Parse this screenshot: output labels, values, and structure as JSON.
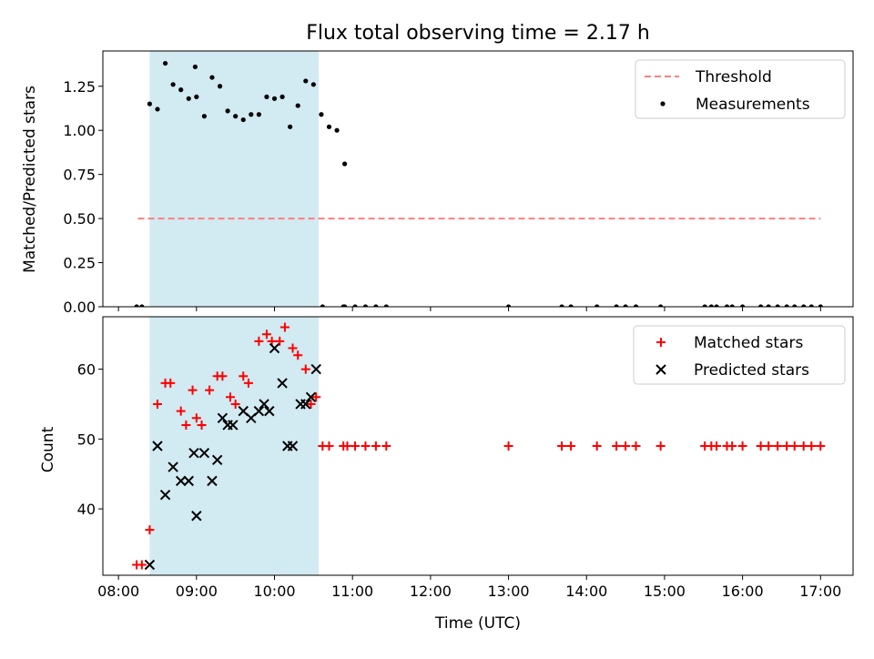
{
  "chart_data": [
    {
      "type": "scatter",
      "title": "Flux total observing time = 2.17 h",
      "ylabel": "Matched/Predicted stars",
      "xlabel": "",
      "ylim": [
        0,
        1.45
      ],
      "xlim": [
        "07:48",
        "17:25"
      ],
      "x_ticks": [
        "08:00",
        "09:00",
        "10:00",
        "11:00",
        "12:00",
        "13:00",
        "14:00",
        "15:00",
        "16:00",
        "17:00"
      ],
      "y_ticks": [
        "0.00",
        "0.25",
        "0.50",
        "0.75",
        "1.00",
        "1.25"
      ],
      "shaded_interval": {
        "start": "08:24",
        "end": "10:34",
        "color": "#add8e6"
      },
      "legend": {
        "position": "top-right",
        "entries": [
          "Threshold",
          "Measurements"
        ]
      },
      "threshold": {
        "name": "Threshold",
        "y": 0.5,
        "x_start": "08:15",
        "x_end": "17:00",
        "color": "#ff7f7f",
        "style": "dashed"
      },
      "series": [
        {
          "name": "Measurements",
          "color": "#000000",
          "marker": "dot",
          "points": [
            [
              "08:14",
              0.0
            ],
            [
              "08:18",
              0.0
            ],
            [
              "08:24",
              1.15
            ],
            [
              "08:30",
              1.12
            ],
            [
              "08:36",
              1.38
            ],
            [
              "08:42",
              1.26
            ],
            [
              "08:48",
              1.23
            ],
            [
              "08:54",
              1.18
            ],
            [
              "09:00",
              1.19
            ],
            [
              "08:59",
              1.36
            ],
            [
              "09:06",
              1.08
            ],
            [
              "09:12",
              1.3
            ],
            [
              "09:18",
              1.25
            ],
            [
              "09:24",
              1.11
            ],
            [
              "09:30",
              1.08
            ],
            [
              "09:36",
              1.06
            ],
            [
              "09:42",
              1.09
            ],
            [
              "09:48",
              1.09
            ],
            [
              "09:54",
              1.19
            ],
            [
              "10:00",
              1.18
            ],
            [
              "10:06",
              1.19
            ],
            [
              "10:12",
              1.02
            ],
            [
              "10:18",
              1.14
            ],
            [
              "10:24",
              1.28
            ],
            [
              "10:30",
              1.26
            ],
            [
              "10:36",
              1.09
            ],
            [
              "10:42",
              1.02
            ],
            [
              "10:48",
              1.0
            ],
            [
              "10:54",
              0.81
            ],
            [
              "10:37",
              0.0
            ],
            [
              "10:53",
              0.0
            ],
            [
              "10:54",
              0.0
            ],
            [
              "11:02",
              0.0
            ],
            [
              "11:10",
              0.0
            ],
            [
              "11:18",
              0.0
            ],
            [
              "11:26",
              0.0
            ],
            [
              "13:00",
              0.0
            ],
            [
              "13:41",
              0.0
            ],
            [
              "13:48",
              0.0
            ],
            [
              "14:08",
              0.0
            ],
            [
              "14:23",
              0.0
            ],
            [
              "14:30",
              0.0
            ],
            [
              "14:38",
              0.0
            ],
            [
              "14:57",
              0.0
            ],
            [
              "15:31",
              0.0
            ],
            [
              "15:36",
              0.0
            ],
            [
              "15:40",
              0.0
            ],
            [
              "15:48",
              0.0
            ],
            [
              "15:52",
              0.0
            ],
            [
              "16:00",
              0.0
            ],
            [
              "16:14",
              0.0
            ],
            [
              "16:20",
              0.0
            ],
            [
              "16:27",
              0.0
            ],
            [
              "16:34",
              0.0
            ],
            [
              "16:40",
              0.0
            ],
            [
              "16:47",
              0.0
            ],
            [
              "16:53",
              0.0
            ],
            [
              "17:00",
              0.0
            ]
          ]
        }
      ]
    },
    {
      "type": "scatter",
      "title": "",
      "ylabel": "Count",
      "xlabel": "Time (UTC)",
      "ylim": [
        30.5,
        67.5
      ],
      "xlim": [
        "07:48",
        "17:25"
      ],
      "x_ticks": [
        "08:00",
        "09:00",
        "10:00",
        "11:00",
        "12:00",
        "13:00",
        "14:00",
        "15:00",
        "16:00",
        "17:00"
      ],
      "y_ticks": [
        "40",
        "50",
        "60"
      ],
      "shaded_interval": {
        "start": "08:24",
        "end": "10:34",
        "color": "#add8e6"
      },
      "legend": {
        "position": "top-right",
        "entries": [
          "Matched stars",
          "Predicted stars"
        ]
      },
      "series": [
        {
          "name": "Matched stars",
          "color": "#ff0000",
          "marker": "plus",
          "points": [
            [
              "08:14",
              32
            ],
            [
              "08:18",
              32
            ],
            [
              "08:24",
              37
            ],
            [
              "08:30",
              55
            ],
            [
              "08:36",
              58
            ],
            [
              "08:40",
              58
            ],
            [
              "08:48",
              54
            ],
            [
              "08:52",
              52
            ],
            [
              "08:57",
              57
            ],
            [
              "09:00",
              53
            ],
            [
              "09:04",
              52
            ],
            [
              "09:10",
              57
            ],
            [
              "09:16",
              59
            ],
            [
              "09:20",
              59
            ],
            [
              "09:26",
              56
            ],
            [
              "09:30",
              55
            ],
            [
              "09:36",
              59
            ],
            [
              "09:40",
              58
            ],
            [
              "09:48",
              64
            ],
            [
              "09:54",
              65
            ],
            [
              "09:58",
              64
            ],
            [
              "10:04",
              64
            ],
            [
              "10:08",
              66
            ],
            [
              "10:14",
              63
            ],
            [
              "10:18",
              62
            ],
            [
              "10:24",
              60
            ],
            [
              "10:28",
              55
            ],
            [
              "10:32",
              56
            ],
            [
              "10:37",
              49
            ],
            [
              "10:42",
              49
            ],
            [
              "10:53",
              49
            ],
            [
              "10:56",
              49
            ],
            [
              "11:02",
              49
            ],
            [
              "11:10",
              49
            ],
            [
              "11:18",
              49
            ],
            [
              "11:26",
              49
            ],
            [
              "13:00",
              49
            ],
            [
              "13:41",
              49
            ],
            [
              "13:48",
              49
            ],
            [
              "14:08",
              49
            ],
            [
              "14:23",
              49
            ],
            [
              "14:30",
              49
            ],
            [
              "14:38",
              49
            ],
            [
              "14:57",
              49
            ],
            [
              "15:31",
              49
            ],
            [
              "15:36",
              49
            ],
            [
              "15:40",
              49
            ],
            [
              "15:48",
              49
            ],
            [
              "15:52",
              49
            ],
            [
              "16:00",
              49
            ],
            [
              "16:14",
              49
            ],
            [
              "16:20",
              49
            ],
            [
              "16:27",
              49
            ],
            [
              "16:34",
              49
            ],
            [
              "16:40",
              49
            ],
            [
              "16:47",
              49
            ],
            [
              "16:53",
              49
            ],
            [
              "17:00",
              49
            ]
          ]
        },
        {
          "name": "Predicted stars",
          "color": "#000000",
          "marker": "x",
          "points": [
            [
              "08:24",
              32
            ],
            [
              "08:30",
              49
            ],
            [
              "08:36",
              42
            ],
            [
              "08:42",
              46
            ],
            [
              "08:48",
              44
            ],
            [
              "08:54",
              44
            ],
            [
              "08:58",
              48
            ],
            [
              "09:00",
              39
            ],
            [
              "09:06",
              48
            ],
            [
              "09:12",
              44
            ],
            [
              "09:16",
              47
            ],
            [
              "09:20",
              53
            ],
            [
              "09:24",
              52
            ],
            [
              "09:28",
              52
            ],
            [
              "09:36",
              54
            ],
            [
              "09:42",
              53
            ],
            [
              "09:48",
              54
            ],
            [
              "09:52",
              55
            ],
            [
              "09:56",
              54
            ],
            [
              "10:00",
              63
            ],
            [
              "10:06",
              58
            ],
            [
              "10:10",
              49
            ],
            [
              "10:14",
              49
            ],
            [
              "10:20",
              55
            ],
            [
              "10:24",
              55
            ],
            [
              "10:28",
              56
            ],
            [
              "10:32",
              60
            ]
          ]
        }
      ]
    }
  ]
}
